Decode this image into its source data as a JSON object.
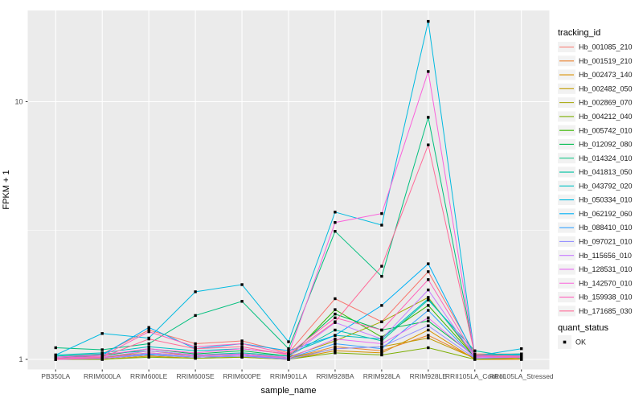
{
  "figure": {
    "x_axis_title": "sample_name",
    "y_axis_title": "FPKM + 1",
    "y_tick_labels": [
      "10",
      "1"
    ],
    "panel_background": "#EBEBEB",
    "gridline_color": "#FFFFFF",
    "tick_label_color": "#4D4D4D",
    "axis_title_color": "#000000",
    "point_color": "#000000",
    "legend": {
      "color_legend_title": "tracking_id",
      "shape_legend_title": "quant_status",
      "shape_legend_items": [
        {
          "label": "OK",
          "shape": "filled-square-icon",
          "color": "#000000"
        }
      ],
      "key_background": "#F2F2F2"
    }
  },
  "chart_data": {
    "type": "line",
    "title": "",
    "xlabel": "sample_name",
    "ylabel": "FPKM + 1",
    "y_scale": "log10",
    "y_major_ticks": [
      1,
      10
    ],
    "y_minor_ticks": [
      3.162
    ],
    "ylim": [
      0.92,
      22.6
    ],
    "grid": true,
    "legend_position": "right",
    "point_marker": "black square (quant_status = OK) on every data point",
    "categories": [
      "PB350LA",
      "RRIM600LA",
      "RRIM600LE",
      "RRIM600SE",
      "RRIM600PE",
      "RRIM901LA",
      "RRIM928BA",
      "RRIM928LA",
      "RRIM928LE",
      "RRII105LA_Control",
      "RRII105LA_Stressed"
    ],
    "series": [
      {
        "name": "Hb_001085_210",
        "color": "#F8766D",
        "values": [
          1.02,
          1.05,
          1.3,
          1.15,
          1.18,
          1.06,
          1.72,
          1.4,
          2.19,
          1.05,
          1.05
        ]
      },
      {
        "name": "Hb_001519_210",
        "color": "#EA8331",
        "values": [
          1.0,
          1.01,
          1.08,
          1.03,
          1.05,
          1.01,
          1.12,
          1.08,
          1.24,
          1.01,
          1.0
        ]
      },
      {
        "name": "Hb_002473_140",
        "color": "#D89000",
        "values": [
          1.0,
          1.0,
          1.03,
          1.01,
          1.02,
          1.0,
          1.08,
          1.06,
          1.3,
          1.0,
          1.0
        ]
      },
      {
        "name": "Hb_002482_050",
        "color": "#C09B00",
        "values": [
          1.0,
          1.01,
          1.04,
          1.02,
          1.03,
          1.01,
          1.1,
          1.12,
          1.21,
          1.01,
          1.01
        ]
      },
      {
        "name": "Hb_002869_070",
        "color": "#A3A500",
        "values": [
          1.01,
          1.02,
          1.06,
          1.03,
          1.05,
          1.02,
          1.18,
          1.4,
          1.74,
          1.02,
          1.03
        ]
      },
      {
        "name": "Hb_004212_040",
        "color": "#7CAE00",
        "values": [
          1.0,
          1.0,
          1.02,
          1.01,
          1.02,
          1.0,
          1.06,
          1.04,
          1.11,
          1.0,
          1.02
        ]
      },
      {
        "name": "Hb_005742_010",
        "color": "#39B600",
        "values": [
          1.0,
          1.01,
          1.04,
          1.02,
          1.03,
          1.01,
          1.56,
          1.22,
          1.62,
          1.02,
          1.03
        ]
      },
      {
        "name": "Hb_012092_080",
        "color": "#00BB4E",
        "values": [
          1.02,
          1.03,
          1.1,
          1.05,
          1.08,
          1.03,
          1.5,
          1.3,
          1.41,
          1.03,
          1.04
        ]
      },
      {
        "name": "Hb_014324_010",
        "color": "#00BF7D",
        "values": [
          1.11,
          1.09,
          1.15,
          1.48,
          1.68,
          1.1,
          3.14,
          2.1,
          8.7,
          1.04,
          1.05
        ]
      },
      {
        "name": "Hb_041813_050",
        "color": "#00C1A3",
        "values": [
          1.03,
          1.05,
          1.08,
          1.04,
          1.06,
          1.03,
          1.3,
          1.18,
          1.7,
          1.08,
          1.01
        ]
      },
      {
        "name": "Hb_043792_020",
        "color": "#00BFC4",
        "values": [
          1.04,
          1.06,
          1.12,
          1.08,
          1.1,
          1.05,
          1.24,
          1.2,
          1.72,
          1.04,
          1.05
        ]
      },
      {
        "name": "Hb_050334_010",
        "color": "#00BAE0",
        "values": [
          1.04,
          1.26,
          1.21,
          1.83,
          1.95,
          1.17,
          3.73,
          3.32,
          20.5,
          1.03,
          1.1
        ]
      },
      {
        "name": "Hb_062192_060",
        "color": "#00B0F6",
        "values": [
          1.02,
          1.04,
          1.33,
          1.1,
          1.15,
          1.08,
          1.24,
          1.62,
          2.35,
          1.03,
          1.04
        ]
      },
      {
        "name": "Hb_088410_010",
        "color": "#35A2FF",
        "values": [
          1.0,
          1.01,
          1.05,
          1.02,
          1.03,
          1.01,
          1.15,
          1.1,
          1.55,
          1.01,
          1.02
        ]
      },
      {
        "name": "Hb_097021_010",
        "color": "#9590FF",
        "values": [
          1.0,
          1.01,
          1.04,
          1.02,
          1.03,
          1.0,
          1.1,
          1.12,
          1.35,
          1.01,
          1.02
        ]
      },
      {
        "name": "Hb_115656_010",
        "color": "#C77CFF",
        "values": [
          1.01,
          1.02,
          1.08,
          1.04,
          1.05,
          1.02,
          1.39,
          1.2,
          1.86,
          1.02,
          1.03
        ]
      },
      {
        "name": "Hb_128531_010",
        "color": "#E76BF3",
        "values": [
          1.0,
          1.01,
          1.06,
          1.03,
          1.04,
          1.01,
          1.2,
          1.15,
          1.45,
          1.02,
          1.02
        ]
      },
      {
        "name": "Hb_142570_010",
        "color": "#FA62DB",
        "values": [
          1.02,
          1.04,
          1.1,
          1.06,
          1.1,
          1.05,
          3.4,
          3.68,
          13.1,
          1.03,
          1.02
        ]
      },
      {
        "name": "Hb_159938_010",
        "color": "#FF62BC",
        "values": [
          1.01,
          1.03,
          1.28,
          1.12,
          1.15,
          1.05,
          1.45,
          1.3,
          2.04,
          1.03,
          1.02
        ]
      },
      {
        "name": "Hb_171685_030",
        "color": "#FF6A98",
        "values": [
          1.0,
          1.02,
          1.2,
          1.1,
          1.12,
          1.04,
          1.4,
          2.3,
          6.8,
          1.04,
          1.03
        ]
      }
    ]
  }
}
